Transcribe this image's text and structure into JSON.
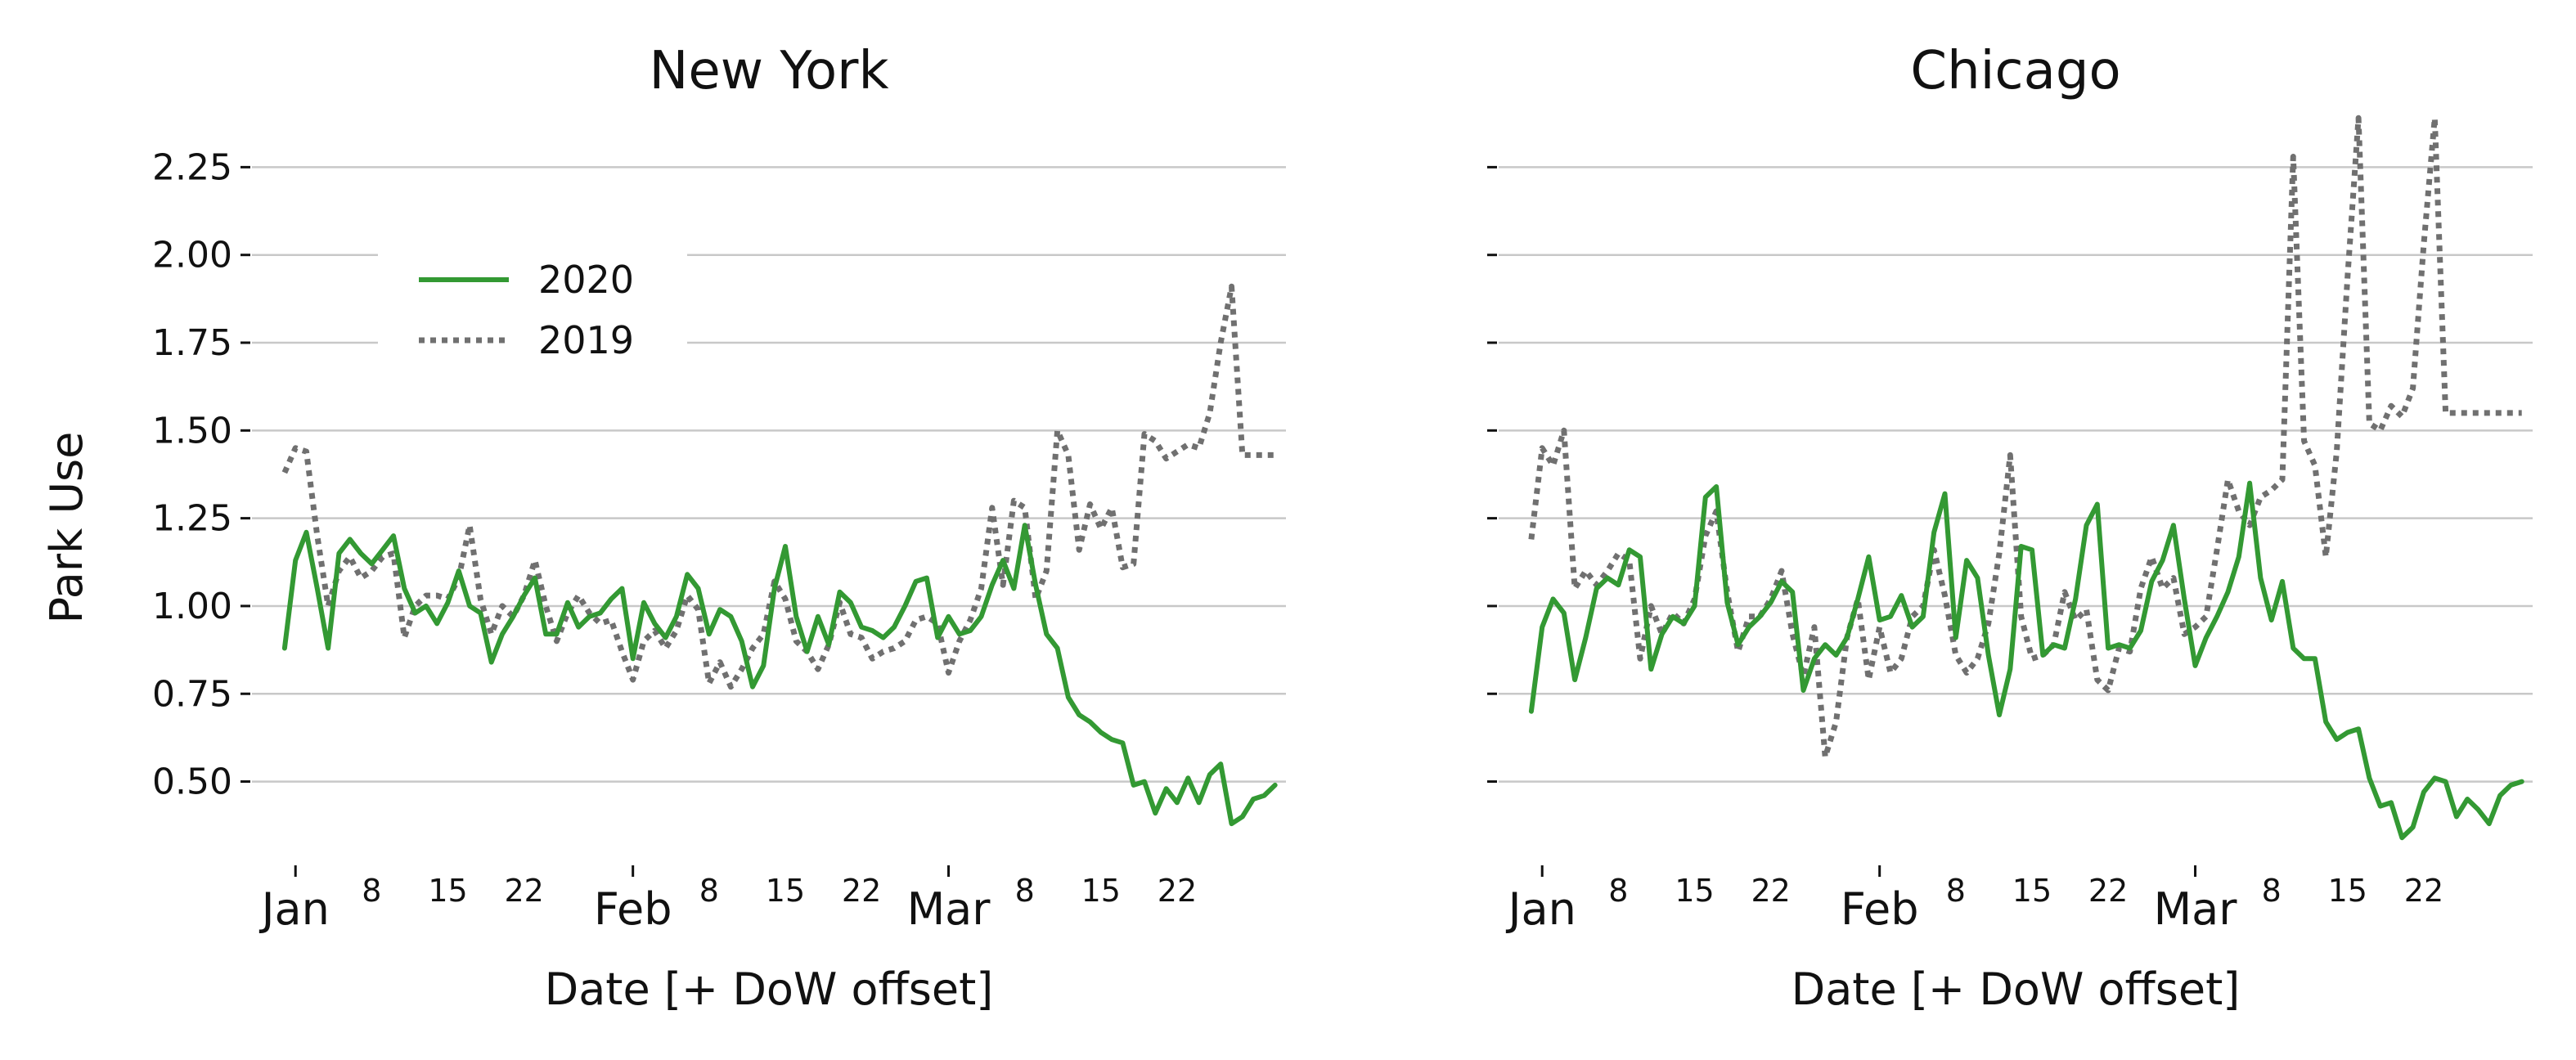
{
  "chart_data": [
    {
      "type": "line",
      "title": "New York",
      "xlabel": "Date [+ DoW offset]",
      "ylabel": "Park Use",
      "ylim": [
        0.28,
        2.4
      ],
      "xlim": [
        -4,
        91
      ],
      "yticks": [
        0.5,
        0.75,
        1.0,
        1.25,
        1.5,
        1.75,
        2.0,
        2.25
      ],
      "ytick_labels": [
        "0.50",
        "0.75",
        "1.00",
        "1.25",
        "1.50",
        "1.75",
        "2.00",
        "2.25"
      ],
      "show_ytick_labels": true,
      "grid": true,
      "legend": {
        "position": "upper-left",
        "entries": [
          {
            "label": "2020",
            "style": "solid",
            "color": "#339933"
          },
          {
            "label": "2019",
            "style": "dotted",
            "color": "#707070"
          }
        ]
      },
      "month_ticks": [
        {
          "label": "Jan",
          "x": 0
        },
        {
          "label": "Feb",
          "x": 31
        },
        {
          "label": "Mar",
          "x": 60
        }
      ],
      "day_ticks": [
        {
          "label": "8",
          "x": 7
        },
        {
          "label": "15",
          "x": 14
        },
        {
          "label": "22",
          "x": 21
        },
        {
          "label": "8",
          "x": 38
        },
        {
          "label": "15",
          "x": 45
        },
        {
          "label": "22",
          "x": 52
        },
        {
          "label": "8",
          "x": 67
        },
        {
          "label": "15",
          "x": 74
        },
        {
          "label": "22",
          "x": 81
        }
      ],
      "series": [
        {
          "name": "2020",
          "style": "solid",
          "color": "#339933",
          "x": [
            -1,
            0,
            1,
            2,
            3,
            4,
            5,
            6,
            7,
            8,
            9,
            10,
            11,
            12,
            13,
            14,
            15,
            16,
            17,
            18,
            19,
            20,
            21,
            22,
            23,
            24,
            25,
            26,
            27,
            28,
            29,
            30,
            31,
            32,
            33,
            34,
            35,
            36,
            37,
            38,
            39,
            40,
            41,
            42,
            43,
            44,
            45,
            46,
            47,
            48,
            49,
            50,
            51,
            52,
            53,
            54,
            55,
            56,
            57,
            58,
            59,
            60,
            61,
            62,
            63,
            64,
            65,
            66,
            67,
            68,
            69,
            70,
            71,
            72,
            73,
            74,
            75,
            76,
            77,
            78,
            79,
            80,
            81,
            82,
            83,
            84,
            85,
            86,
            87,
            88,
            89,
            90
          ],
          "y": [
            0.88,
            1.13,
            1.21,
            1.05,
            0.88,
            1.15,
            1.19,
            1.15,
            1.12,
            1.16,
            1.2,
            1.05,
            0.98,
            1.0,
            0.95,
            1.01,
            1.1,
            1.0,
            0.98,
            0.84,
            0.92,
            0.97,
            1.03,
            1.08,
            0.92,
            0.92,
            1.01,
            0.94,
            0.97,
            0.98,
            1.02,
            1.05,
            0.85,
            1.01,
            0.95,
            0.91,
            0.97,
            1.09,
            1.05,
            0.92,
            0.99,
            0.97,
            0.9,
            0.77,
            0.83,
            1.05,
            1.17,
            0.97,
            0.87,
            0.97,
            0.89,
            1.04,
            1.01,
            0.94,
            0.93,
            0.91,
            0.94,
            1.0,
            1.07,
            1.08,
            0.91,
            0.97,
            0.92,
            0.93,
            0.97,
            1.06,
            1.13,
            1.05,
            1.23,
            1.06,
            0.92,
            0.88,
            0.74,
            0.69,
            0.67,
            0.64,
            0.62,
            0.61,
            0.49,
            0.5,
            0.41,
            0.48,
            0.44,
            0.51,
            0.44,
            0.52,
            0.55,
            0.38,
            0.4,
            0.45,
            0.46,
            0.49
          ]
        },
        {
          "name": "2019",
          "style": "dotted",
          "color": "#707070",
          "x": [
            -1,
            0,
            1,
            2,
            3,
            4,
            5,
            6,
            7,
            8,
            9,
            10,
            11,
            12,
            13,
            14,
            15,
            16,
            17,
            18,
            19,
            20,
            21,
            22,
            23,
            24,
            25,
            26,
            27,
            28,
            29,
            30,
            31,
            32,
            33,
            34,
            35,
            36,
            37,
            38,
            39,
            40,
            41,
            42,
            43,
            44,
            45,
            46,
            47,
            48,
            49,
            50,
            51,
            52,
            53,
            54,
            55,
            56,
            57,
            58,
            59,
            60,
            61,
            62,
            63,
            64,
            65,
            66,
            67,
            68,
            69,
            70,
            71,
            72,
            73,
            74,
            75,
            76,
            77,
            78,
            79,
            80,
            81,
            82,
            83,
            84,
            85,
            86,
            87,
            88,
            89,
            90
          ],
          "y": [
            1.38,
            1.45,
            1.44,
            1.2,
            1.0,
            1.1,
            1.14,
            1.08,
            1.1,
            1.14,
            1.15,
            0.91,
            1.0,
            1.03,
            1.03,
            1.02,
            1.08,
            1.23,
            1.02,
            0.92,
            1.0,
            0.97,
            1.03,
            1.13,
            1.0,
            0.9,
            0.98,
            1.03,
            0.98,
            0.95,
            0.96,
            0.87,
            0.79,
            0.9,
            0.93,
            0.88,
            0.93,
            1.03,
            0.99,
            0.78,
            0.84,
            0.77,
            0.82,
            0.88,
            0.92,
            1.07,
            1.02,
            0.9,
            0.87,
            0.82,
            0.89,
            1.01,
            0.92,
            0.91,
            0.85,
            0.87,
            0.88,
            0.9,
            0.96,
            0.97,
            0.95,
            0.81,
            0.9,
            0.96,
            1.05,
            1.28,
            1.06,
            1.3,
            1.28,
            1.02,
            1.1,
            1.5,
            1.43,
            1.16,
            1.29,
            1.22,
            1.28,
            1.11,
            1.12,
            1.49,
            1.47,
            1.42,
            1.44,
            1.46,
            1.45,
            1.55,
            1.75,
            1.91,
            1.43,
            1.43,
            1.43,
            1.43
          ]
        }
      ]
    },
    {
      "type": "line",
      "title": "Chicago",
      "xlabel": "Date [+ DoW offset]",
      "ylabel": "",
      "ylim": [
        0.28,
        2.4
      ],
      "xlim": [
        -4,
        91
      ],
      "yticks": [
        0.5,
        0.75,
        1.0,
        1.25,
        1.5,
        1.75,
        2.0,
        2.25
      ],
      "show_ytick_labels": false,
      "grid": true,
      "month_ticks": [
        {
          "label": "Jan",
          "x": 0
        },
        {
          "label": "Feb",
          "x": 31
        },
        {
          "label": "Mar",
          "x": 60
        }
      ],
      "day_ticks": [
        {
          "label": "8",
          "x": 7
        },
        {
          "label": "15",
          "x": 14
        },
        {
          "label": "22",
          "x": 21
        },
        {
          "label": "8",
          "x": 38
        },
        {
          "label": "15",
          "x": 45
        },
        {
          "label": "22",
          "x": 52
        },
        {
          "label": "8",
          "x": 67
        },
        {
          "label": "15",
          "x": 74
        },
        {
          "label": "22",
          "x": 81
        }
      ],
      "series": [
        {
          "name": "2020",
          "style": "solid",
          "color": "#339933",
          "x": [
            -1,
            0,
            1,
            2,
            3,
            4,
            5,
            6,
            7,
            8,
            9,
            10,
            11,
            12,
            13,
            14,
            15,
            16,
            17,
            18,
            19,
            20,
            21,
            22,
            23,
            24,
            25,
            26,
            27,
            28,
            29,
            30,
            31,
            32,
            33,
            34,
            35,
            36,
            37,
            38,
            39,
            40,
            41,
            42,
            43,
            44,
            45,
            46,
            47,
            48,
            49,
            50,
            51,
            52,
            53,
            54,
            55,
            56,
            57,
            58,
            59,
            60,
            61,
            62,
            63,
            64,
            65,
            66,
            67,
            68,
            69,
            70,
            71,
            72,
            73,
            74,
            75,
            76,
            77,
            78,
            79,
            80,
            81,
            82,
            83,
            84,
            85,
            86,
            87,
            88,
            89,
            90
          ],
          "y": [
            0.7,
            0.94,
            1.02,
            0.98,
            0.79,
            0.91,
            1.05,
            1.08,
            1.06,
            1.16,
            1.14,
            0.82,
            0.92,
            0.97,
            0.95,
            1.0,
            1.31,
            1.34,
            1.01,
            0.89,
            0.94,
            0.97,
            1.01,
            1.07,
            1.04,
            0.76,
            0.85,
            0.89,
            0.86,
            0.91,
            1.02,
            1.14,
            0.96,
            0.97,
            1.03,
            0.94,
            0.97,
            1.21,
            1.32,
            0.91,
            1.13,
            1.08,
            0.86,
            0.69,
            0.82,
            1.17,
            1.16,
            0.86,
            0.89,
            0.88,
            1.02,
            1.23,
            1.29,
            0.88,
            0.89,
            0.88,
            0.93,
            1.07,
            1.13,
            1.23,
            1.02,
            0.83,
            0.91,
            0.97,
            1.04,
            1.14,
            1.35,
            1.08,
            0.96,
            1.07,
            0.88,
            0.85,
            0.85,
            0.67,
            0.62,
            0.64,
            0.65,
            0.51,
            0.43,
            0.44,
            0.34,
            0.37,
            0.47,
            0.51,
            0.5,
            0.4,
            0.45,
            0.42,
            0.38,
            0.46,
            0.49,
            0.5
          ]
        },
        {
          "name": "2019",
          "style": "dotted",
          "color": "#707070",
          "x": [
            -1,
            0,
            1,
            2,
            3,
            4,
            5,
            6,
            7,
            8,
            9,
            10,
            11,
            12,
            13,
            14,
            15,
            16,
            17,
            18,
            19,
            20,
            21,
            22,
            23,
            24,
            25,
            26,
            27,
            28,
            29,
            30,
            31,
            32,
            33,
            34,
            35,
            36,
            37,
            38,
            39,
            40,
            41,
            42,
            43,
            44,
            45,
            46,
            47,
            48,
            49,
            50,
            51,
            52,
            53,
            54,
            55,
            56,
            57,
            58,
            59,
            60,
            61,
            62,
            63,
            64,
            65,
            66,
            67,
            68,
            69,
            70,
            71,
            72,
            73,
            74,
            75,
            76,
            77,
            78,
            79,
            80,
            81,
            82,
            83,
            84,
            85,
            86,
            87,
            88,
            89,
            90
          ],
          "y": [
            1.19,
            1.45,
            1.4,
            1.5,
            1.05,
            1.1,
            1.06,
            1.1,
            1.15,
            1.13,
            0.85,
            1.0,
            0.92,
            0.98,
            0.95,
            1.02,
            1.2,
            1.27,
            1.04,
            0.87,
            0.97,
            0.97,
            1.02,
            1.1,
            0.92,
            0.8,
            0.94,
            0.57,
            0.67,
            0.91,
            1.02,
            0.79,
            0.94,
            0.81,
            0.85,
            0.97,
            1.0,
            1.16,
            1.03,
            0.86,
            0.81,
            0.85,
            0.95,
            1.15,
            1.43,
            0.97,
            0.85,
            0.86,
            0.89,
            1.04,
            0.96,
            0.99,
            0.79,
            0.76,
            0.88,
            0.87,
            1.05,
            1.14,
            1.05,
            1.08,
            0.92,
            0.94,
            0.97,
            1.16,
            1.36,
            1.27,
            1.23,
            1.31,
            1.33,
            1.36,
            2.28,
            1.47,
            1.4,
            1.14,
            1.44,
            1.94,
            2.39,
            1.52,
            1.5,
            1.57,
            1.54,
            1.62,
            2.03,
            2.39,
            1.55,
            1.55,
            1.55,
            1.55,
            1.55,
            1.55,
            1.55,
            1.55
          ]
        }
      ]
    }
  ]
}
